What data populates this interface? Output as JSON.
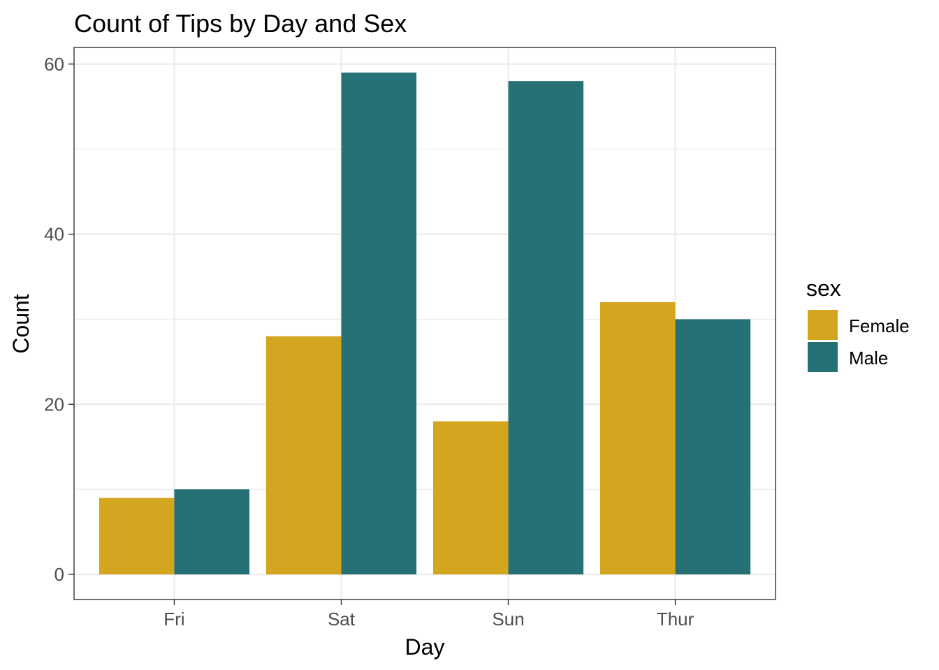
{
  "chart_data": {
    "type": "bar",
    "title": "Count of Tips by Day and Sex",
    "xlabel": "Day",
    "ylabel": "Count",
    "categories": [
      "Fri",
      "Sat",
      "Sun",
      "Thur"
    ],
    "series": [
      {
        "name": "Female",
        "color": "#D4A51E",
        "values": [
          9,
          28,
          18,
          32
        ]
      },
      {
        "name": "Male",
        "color": "#267176",
        "values": [
          10,
          59,
          58,
          30
        ]
      }
    ],
    "ylim": [
      -2.95,
      61.95
    ],
    "yticks": [
      0,
      20,
      40,
      60
    ],
    "grid": true,
    "legend": {
      "title": "sex",
      "position": "right"
    }
  }
}
